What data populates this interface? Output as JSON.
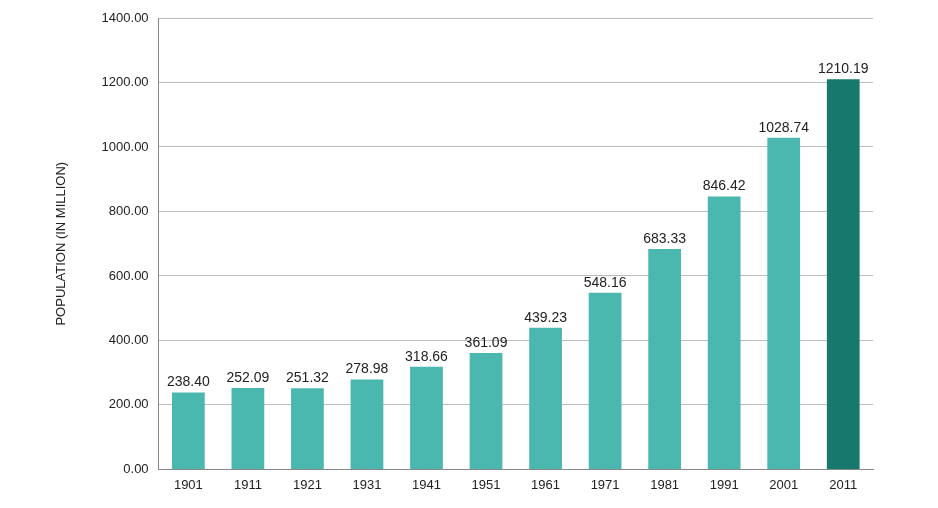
{
  "chart_data": {
    "type": "bar",
    "y_label": "POPULATION (IN MILLION)",
    "categories": [
      "1901",
      "1911",
      "1921",
      "1931",
      "1941",
      "1951",
      "1961",
      "1971",
      "1981",
      "1991",
      "2001",
      "2011"
    ],
    "values": [
      238.4,
      252.09,
      251.32,
      278.98,
      318.66,
      361.09,
      439.23,
      548.16,
      683.33,
      846.42,
      1028.74,
      1210.19
    ],
    "value_labels": [
      "238.40",
      "252.09",
      "251.32",
      "278.98",
      "318.66",
      "361.09",
      "439.23",
      "548.16",
      "683.33",
      "846.42",
      "1028.74",
      "1210.19"
    ],
    "colors": [
      "#4bb8b0",
      "#4bb8b0",
      "#4bb8b0",
      "#4bb8b0",
      "#4bb8b0",
      "#4bb8b0",
      "#4bb8b0",
      "#4bb8b0",
      "#4bb8b0",
      "#4bb8b0",
      "#4bb8b0",
      "#17786d"
    ],
    "ylim": [
      0,
      1400
    ],
    "yticks": [
      {
        "value": 0,
        "label": "0.00"
      },
      {
        "value": 200,
        "label": "200.00"
      },
      {
        "value": 400,
        "label": "400.00"
      },
      {
        "value": 600,
        "label": "600.00"
      },
      {
        "value": 800,
        "label": "800.00"
      },
      {
        "value": 1000,
        "label": "1000.00"
      },
      {
        "value": 1200,
        "label": "1200.00"
      },
      {
        "value": 1400,
        "label": "1400.00"
      }
    ],
    "grid": true,
    "data_labels": true
  }
}
